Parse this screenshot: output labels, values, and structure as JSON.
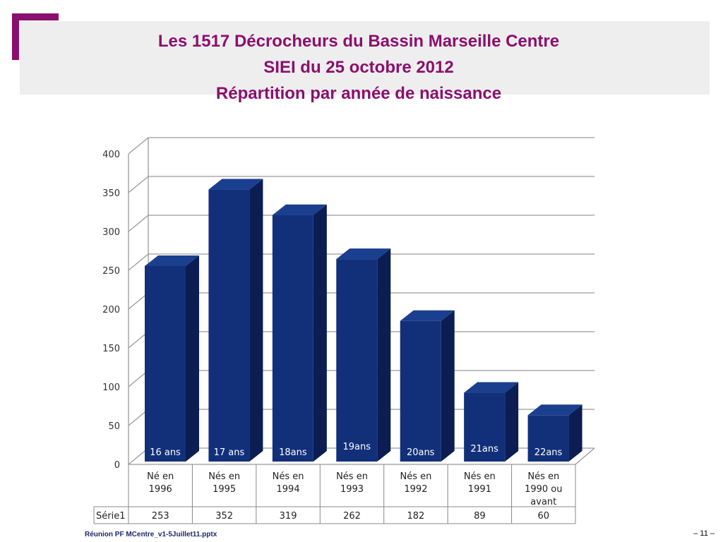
{
  "title": {
    "line1": "Les 1517 Décrocheurs du Bassin Marseille Centre",
    "line2": "SIEI du 25 octobre 2012",
    "line3": "Répartition par année de naissance"
  },
  "footer": {
    "left": "Réunion PF MCentre_v1-5Juillet11.pptx",
    "right": "– 11 –"
  },
  "colors": {
    "accent": "#8b0f6e",
    "bar_front": "#12307a",
    "bar_side": "#0b1d52",
    "bar_top": "#1a3f8f"
  },
  "chart_data": {
    "type": "bar",
    "ylim": [
      0,
      400
    ],
    "yticks": [
      0,
      50,
      100,
      150,
      200,
      250,
      300,
      350,
      400
    ],
    "categories": [
      [
        "Né en",
        "1996"
      ],
      [
        "Nés en",
        "1995"
      ],
      [
        "Nés en",
        "1994"
      ],
      [
        "Nés en",
        "1993"
      ],
      [
        "Nés en",
        "1992"
      ],
      [
        "Nés en",
        "1991"
      ],
      [
        "Nés en",
        "1990 ou",
        "avant"
      ]
    ],
    "bar_labels": [
      "16 ans",
      "17 ans",
      "18ans",
      "19ans",
      "20ans",
      "21ans",
      "22ans"
    ],
    "series": [
      {
        "name": "Série1",
        "values": [
          253,
          352,
          319,
          262,
          182,
          89,
          60
        ]
      }
    ],
    "grid": true
  }
}
